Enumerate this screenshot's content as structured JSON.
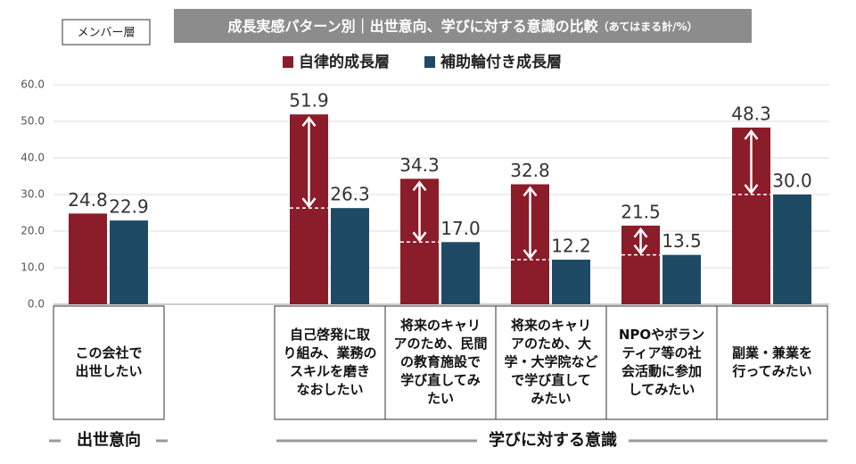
{
  "chart_data": {
    "type": "bar",
    "title": "成長実感パターン別｜出世意向、学びに対する意識の比較",
    "title_note": "（あてはまる計/%）",
    "badge": "メンバー層",
    "categories": [
      [
        "この会社で",
        "出世したい"
      ],
      [
        "自己啓発に取",
        "り組み、業務の",
        "スキルを磨き",
        "なおしたい"
      ],
      [
        "将来のキャリ",
        "アのため、民間",
        "の教育施設で",
        "学び直してみ",
        "たい"
      ],
      [
        "将来のキャリ",
        "アのため、大",
        "学・大学院など",
        "で学び直して",
        "みたい"
      ],
      [
        "NPOやボラン",
        "ティア等の社",
        "会活動に参加",
        "してみたい"
      ],
      [
        "副業・兼業を",
        "行ってみたい"
      ]
    ],
    "series": [
      {
        "name": "自律的成長層",
        "color": "#8b1c2a",
        "values": [
          24.8,
          51.9,
          34.3,
          32.8,
          21.5,
          48.3
        ],
        "value_labels": [
          "24.8",
          "51.9",
          "34.3",
          "32.8",
          "21.5",
          "48.3"
        ]
      },
      {
        "name": "補助輪付き成長層",
        "color": "#1f4a66",
        "values": [
          22.9,
          26.3,
          17.0,
          12.2,
          13.5,
          30.0
        ],
        "value_labels": [
          "22.9",
          "26.3",
          "17.0",
          "12.2",
          "13.5",
          "30.0"
        ]
      }
    ],
    "ylim": [
      0,
      60
    ],
    "yticks": [
      {
        "value": 0,
        "label": "0.0"
      },
      {
        "value": 10,
        "label": "10.0"
      },
      {
        "value": 20,
        "label": "20.0"
      },
      {
        "value": 30,
        "label": "30.0"
      },
      {
        "value": 40,
        "label": "40.0"
      },
      {
        "value": 50,
        "label": "50.0"
      },
      {
        "value": 60,
        "label": "60.0"
      }
    ],
    "grid": true,
    "group_labels": [
      "出世意向",
      "学びに対する意識"
    ]
  }
}
